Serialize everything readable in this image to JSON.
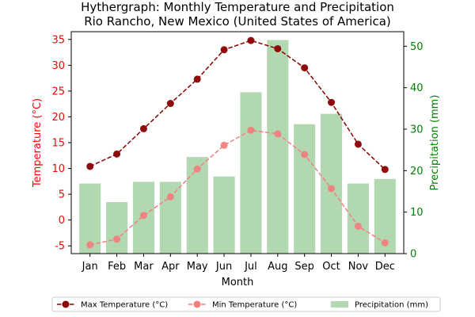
{
  "chart_data": {
    "type": "bar",
    "title_line1": "Hythergraph: Monthly Temperature and Precipitation",
    "title_line2": "Rio Rancho, New Mexico (United States of America)",
    "xlabel": "Month",
    "ylabel_left": "Temperature (°C)",
    "ylabel_right": "Precipitation (mm)",
    "categories": [
      "Jan",
      "Feb",
      "Mar",
      "Apr",
      "May",
      "Jun",
      "Jul",
      "Aug",
      "Sep",
      "Oct",
      "Nov",
      "Dec"
    ],
    "ylim_left": [
      -6.5,
      36.5
    ],
    "ylim_right": [
      0,
      53.5
    ],
    "yticks_left": [
      "-5",
      "0",
      "5",
      "10",
      "15",
      "20",
      "25",
      "30",
      "35"
    ],
    "yticks_right": [
      "0",
      "10",
      "20",
      "30",
      "40",
      "50"
    ],
    "grid": false,
    "legend_position": "bottom",
    "series": [
      {
        "name": "Max Temperature (°C)",
        "kind": "line",
        "axis": "left",
        "color": "#8b0000",
        "values": [
          10.4,
          12.8,
          17.7,
          22.6,
          27.3,
          33.0,
          34.8,
          33.2,
          29.5,
          22.8,
          14.7,
          9.8
        ]
      },
      {
        "name": "Min Temperature (°C)",
        "kind": "line",
        "axis": "left",
        "color": "#f08080",
        "values": [
          -4.8,
          -3.7,
          0.9,
          4.5,
          9.9,
          14.5,
          17.4,
          16.7,
          12.7,
          6.1,
          -1.2,
          -4.4
        ]
      },
      {
        "name": "Precipitation (mm)",
        "kind": "bar",
        "axis": "right",
        "color": "#b2d8b2",
        "values": [
          16.9,
          12.4,
          17.3,
          17.3,
          23.3,
          18.6,
          38.9,
          51.5,
          31.2,
          33.7,
          16.9,
          18.0
        ]
      }
    ]
  }
}
